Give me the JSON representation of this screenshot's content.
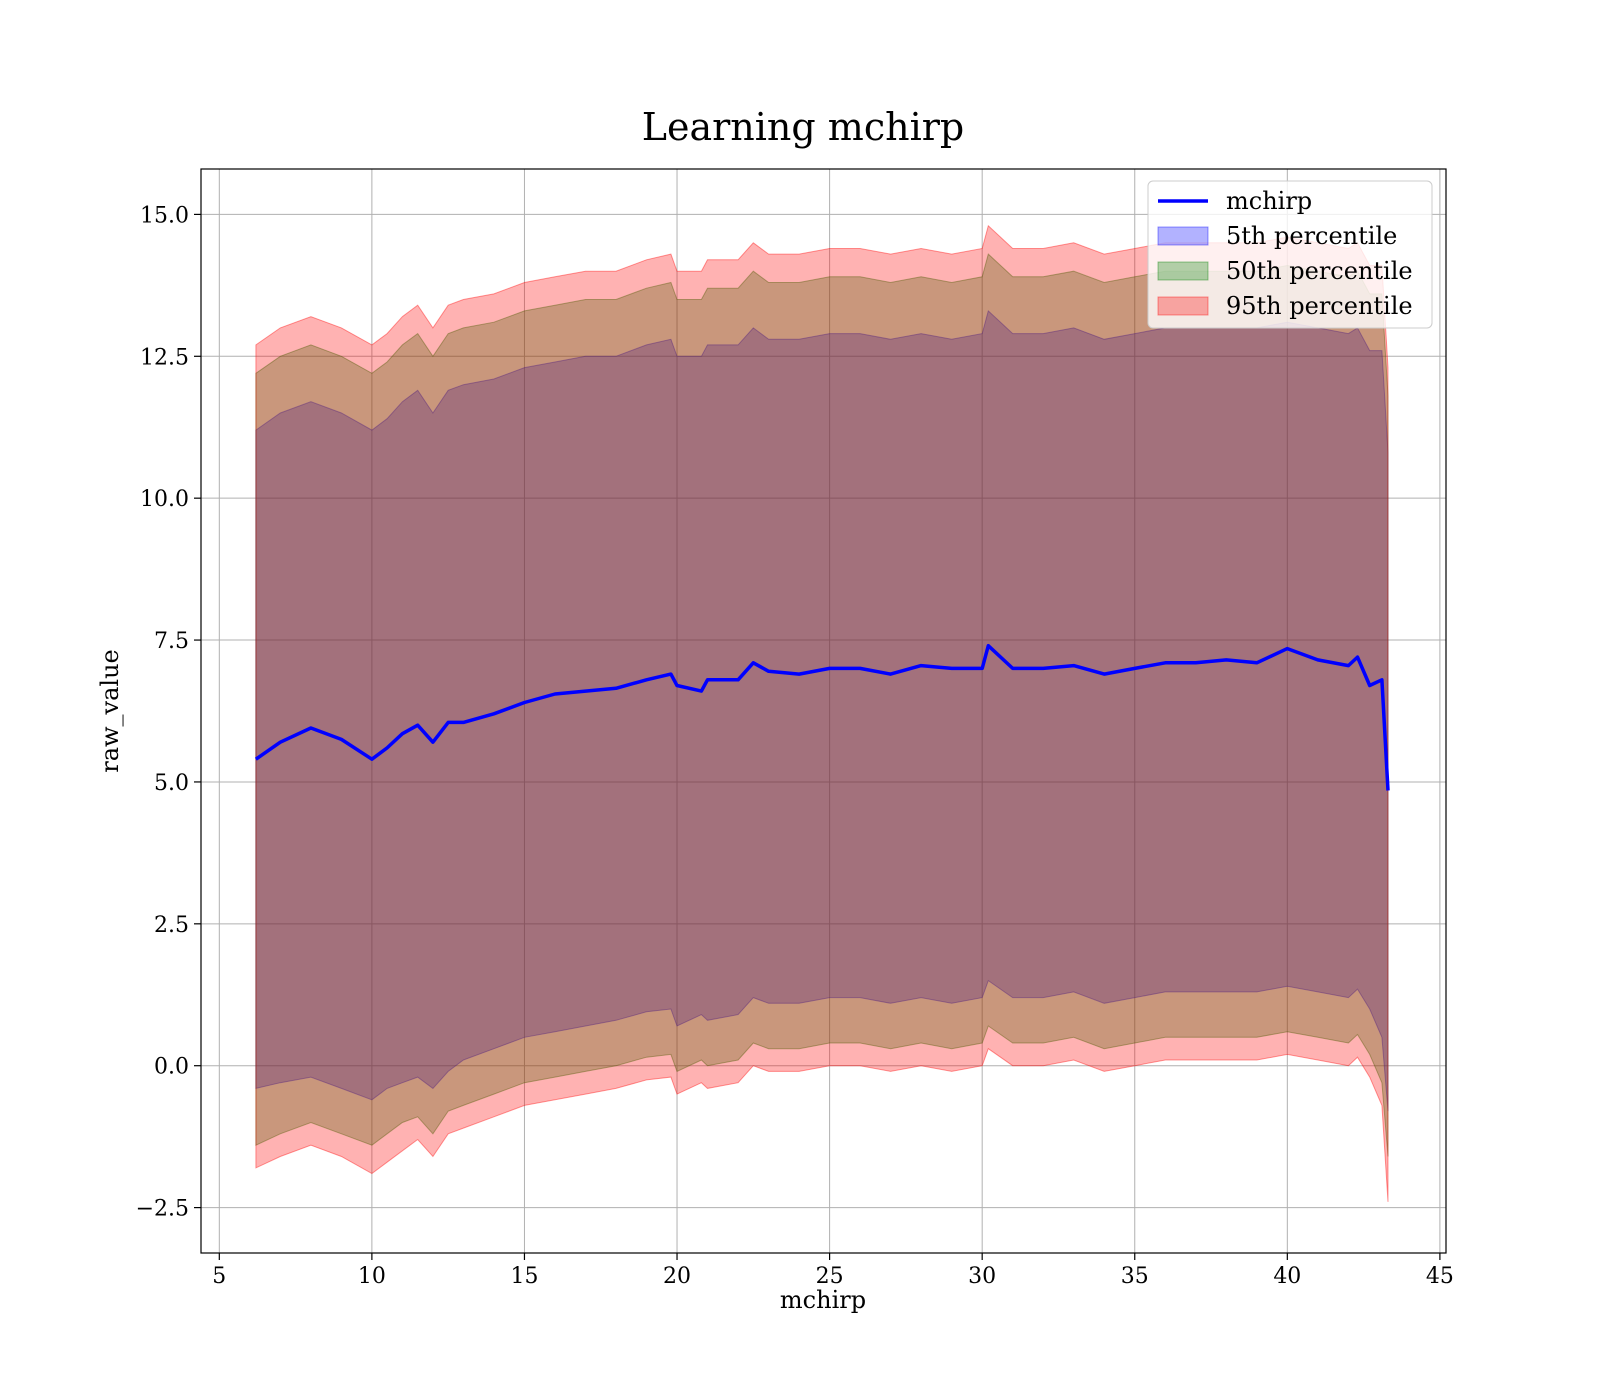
{
  "chart_data": {
    "type": "area",
    "title": "Learning mchirp",
    "xlabel": "mchirp",
    "ylabel": "raw_value",
    "xlim": [
      4.4,
      45.2
    ],
    "ylim": [
      -3.3,
      15.8
    ],
    "x_ticks": [
      5,
      10,
      15,
      20,
      25,
      30,
      35,
      40,
      45
    ],
    "x_tick_labels": [
      "5",
      "10",
      "15",
      "20",
      "25",
      "30",
      "35",
      "40",
      "45"
    ],
    "y_ticks": [
      -2.5,
      0.0,
      2.5,
      5.0,
      7.5,
      10.0,
      12.5,
      15.0
    ],
    "y_tick_labels": [
      "−2.5",
      "0.0",
      "2.5",
      "5.0",
      "7.5",
      "10.0",
      "12.5",
      "15.0"
    ],
    "grid": true,
    "legend_position": "top-right",
    "x": [
      6.2,
      7,
      8,
      9,
      10,
      10.5,
      11,
      11.5,
      12,
      12.5,
      13,
      14,
      15,
      16,
      17,
      18,
      19,
      19.8,
      20,
      20.8,
      21,
      22,
      22.5,
      23,
      24,
      25,
      26,
      27,
      28,
      29,
      30,
      30.2,
      31,
      32,
      33,
      34,
      35,
      36,
      37,
      38,
      39,
      40,
      41,
      42,
      42.3,
      42.7,
      43.1,
      43.3
    ],
    "series": [
      {
        "name": "mchirp",
        "kind": "line",
        "color": "#0000ff",
        "values": [
          5.4,
          5.7,
          5.95,
          5.75,
          5.4,
          5.6,
          5.85,
          6.0,
          5.7,
          6.05,
          6.05,
          6.2,
          6.4,
          6.55,
          6.6,
          6.65,
          6.8,
          6.9,
          6.7,
          6.6,
          6.8,
          6.8,
          7.1,
          6.95,
          6.9,
          7.0,
          7.0,
          6.9,
          7.05,
          7.0,
          7.0,
          7.4,
          7.0,
          7.0,
          7.05,
          6.9,
          7.0,
          7.1,
          7.1,
          7.15,
          7.1,
          7.35,
          7.15,
          7.05,
          7.2,
          6.7,
          6.8,
          4.85
        ]
      },
      {
        "name": "5th percentile",
        "kind": "band",
        "color": "#0000ff",
        "lower": [
          -0.4,
          -0.3,
          -0.2,
          -0.4,
          -0.6,
          -0.4,
          -0.3,
          -0.2,
          -0.4,
          -0.1,
          0.1,
          0.3,
          0.5,
          0.6,
          0.7,
          0.8,
          0.95,
          1.0,
          0.7,
          0.9,
          0.8,
          0.9,
          1.2,
          1.1,
          1.1,
          1.2,
          1.2,
          1.1,
          1.2,
          1.1,
          1.2,
          1.5,
          1.2,
          1.2,
          1.3,
          1.1,
          1.2,
          1.3,
          1.3,
          1.3,
          1.3,
          1.4,
          1.3,
          1.2,
          1.35,
          1.0,
          0.5,
          -0.8
        ],
        "upper": [
          11.2,
          11.5,
          11.7,
          11.5,
          11.2,
          11.4,
          11.7,
          11.9,
          11.5,
          11.9,
          12.0,
          12.1,
          12.3,
          12.4,
          12.5,
          12.5,
          12.7,
          12.8,
          12.5,
          12.5,
          12.7,
          12.7,
          13.0,
          12.8,
          12.8,
          12.9,
          12.9,
          12.8,
          12.9,
          12.8,
          12.9,
          13.3,
          12.9,
          12.9,
          13.0,
          12.8,
          12.9,
          13.0,
          13.0,
          13.0,
          13.0,
          13.1,
          13.0,
          12.9,
          13.0,
          12.6,
          12.6,
          10.8
        ]
      },
      {
        "name": "50th percentile",
        "kind": "band",
        "color": "#008000",
        "lower": [
          -1.4,
          -1.2,
          -1.0,
          -1.2,
          -1.4,
          -1.2,
          -1.0,
          -0.9,
          -1.2,
          -0.8,
          -0.7,
          -0.5,
          -0.3,
          -0.2,
          -0.1,
          0.0,
          0.15,
          0.2,
          -0.1,
          0.1,
          0.0,
          0.1,
          0.4,
          0.3,
          0.3,
          0.4,
          0.4,
          0.3,
          0.4,
          0.3,
          0.4,
          0.7,
          0.4,
          0.4,
          0.5,
          0.3,
          0.4,
          0.5,
          0.5,
          0.5,
          0.5,
          0.6,
          0.5,
          0.4,
          0.55,
          0.2,
          -0.3,
          -1.6
        ],
        "upper": [
          12.2,
          12.5,
          12.7,
          12.5,
          12.2,
          12.4,
          12.7,
          12.9,
          12.5,
          12.9,
          13.0,
          13.1,
          13.3,
          13.4,
          13.5,
          13.5,
          13.7,
          13.8,
          13.5,
          13.5,
          13.7,
          13.7,
          14.0,
          13.8,
          13.8,
          13.9,
          13.9,
          13.8,
          13.9,
          13.8,
          13.9,
          14.3,
          13.9,
          13.9,
          14.0,
          13.8,
          13.9,
          14.0,
          14.0,
          14.0,
          14.0,
          14.1,
          14.0,
          13.9,
          14.0,
          13.6,
          13.6,
          11.8
        ]
      },
      {
        "name": "95th percentile",
        "kind": "band",
        "color": "#ff0000",
        "lower": [
          -1.8,
          -1.6,
          -1.4,
          -1.6,
          -1.9,
          -1.7,
          -1.5,
          -1.3,
          -1.6,
          -1.2,
          -1.1,
          -0.9,
          -0.7,
          -0.6,
          -0.5,
          -0.4,
          -0.25,
          -0.2,
          -0.5,
          -0.3,
          -0.4,
          -0.3,
          0.0,
          -0.1,
          -0.1,
          0.0,
          0.0,
          -0.1,
          0.0,
          -0.1,
          0.0,
          0.3,
          0.0,
          0.0,
          0.1,
          -0.1,
          0.0,
          0.1,
          0.1,
          0.1,
          0.1,
          0.2,
          0.1,
          0.0,
          0.15,
          -0.2,
          -0.7,
          -2.4
        ],
        "upper": [
          12.7,
          13.0,
          13.2,
          13.0,
          12.7,
          12.9,
          13.2,
          13.4,
          13.0,
          13.4,
          13.5,
          13.6,
          13.8,
          13.9,
          14.0,
          14.0,
          14.2,
          14.3,
          14.0,
          14.0,
          14.2,
          14.2,
          14.5,
          14.3,
          14.3,
          14.4,
          14.4,
          14.3,
          14.4,
          14.3,
          14.4,
          14.8,
          14.4,
          14.4,
          14.5,
          14.3,
          14.4,
          14.5,
          14.5,
          14.5,
          14.5,
          14.6,
          14.5,
          14.4,
          14.5,
          14.1,
          14.1,
          12.3
        ]
      }
    ]
  }
}
